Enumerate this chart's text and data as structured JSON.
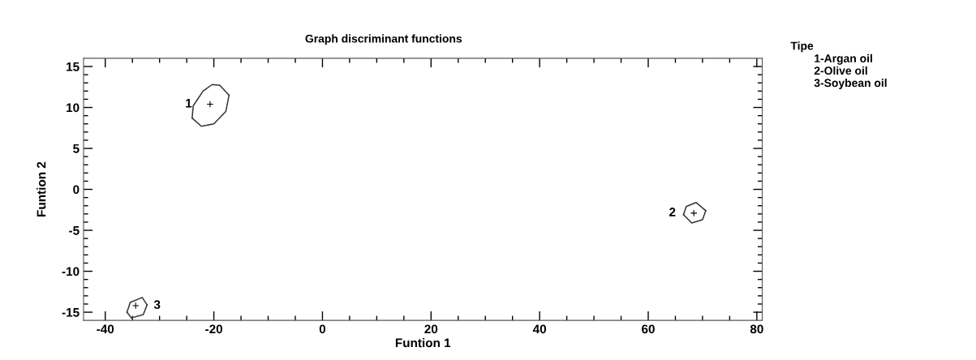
{
  "chart_data": {
    "type": "scatter",
    "title": "Graph discriminant functions",
    "xlabel": "Funtion 1",
    "ylabel": "Funtion 2",
    "legend_title": "Tipe",
    "annotations": [
      "1-Argan oil",
      "2-Olive oil",
      "3-Soybean oil"
    ],
    "marker": "cross",
    "series": [
      {
        "name": "1",
        "color": "#000000",
        "x": [
          -20.7
        ],
        "values": [
          10.4
        ]
      },
      {
        "name": "2",
        "color": "#000000",
        "x": [
          68.4
        ],
        "values": [
          -2.9
        ]
      },
      {
        "name": "3",
        "color": "#000000",
        "x": [
          -34.4
        ],
        "values": [
          -14.2
        ]
      },
      {
        "type": "line",
        "marker": "none",
        "color": "#333333",
        "x": [
          -24.0,
          -23.8,
          -22.0,
          -20.3,
          -18.9,
          -17.2
        ],
        "values": [
          8.7,
          10.2,
          12.0,
          12.8,
          12.7,
          11.5
        ]
      },
      {
        "type": "line",
        "marker": "none",
        "color": "#333333",
        "x": [
          -24.0,
          -22.3,
          -20.0,
          -17.8,
          -17.2
        ],
        "values": [
          8.7,
          7.7,
          8.0,
          9.5,
          11.5
        ]
      },
      {
        "type": "line",
        "marker": "none",
        "color": "#333333",
        "x": [
          66.5,
          67.0,
          68.8,
          70.6
        ],
        "values": [
          -3.1,
          -2.1,
          -1.6,
          -2.6
        ]
      },
      {
        "type": "line",
        "marker": "none",
        "color": "#333333",
        "x": [
          66.5,
          68.0,
          70.0,
          70.6
        ],
        "values": [
          -3.1,
          -4.1,
          -3.7,
          -2.6
        ]
      },
      {
        "type": "line",
        "marker": "none",
        "color": "#333333",
        "x": [
          -36.0,
          -35.4,
          -33.2,
          -32.3
        ],
        "values": [
          -15.0,
          -13.8,
          -13.2,
          -14.1
        ]
      },
      {
        "type": "line",
        "marker": "none",
        "color": "#333333",
        "x": [
          -36.0,
          -35.2,
          -33.0,
          -32.3
        ],
        "values": [
          -15.0,
          -15.7,
          -15.3,
          -14.1
        ]
      }
    ],
    "xlim": [
      -44,
      81
    ],
    "ylim": [
      -16,
      16
    ],
    "xticks": [
      -40,
      {
        "value": -35,
        "label": null
      },
      {
        "value": -30,
        "label": null
      },
      {
        "value": -25,
        "label": null
      },
      -20,
      {
        "value": -15,
        "label": null
      },
      {
        "value": -10,
        "label": null
      },
      {
        "value": -5,
        "label": null
      },
      0,
      {
        "value": 5,
        "label": null
      },
      {
        "value": 10,
        "label": null
      },
      {
        "value": 15,
        "label": null
      },
      20,
      {
        "value": 25,
        "label": null
      },
      {
        "value": 30,
        "label": null
      },
      {
        "value": 35,
        "label": null
      },
      40,
      {
        "value": 45,
        "label": null
      },
      {
        "value": 50,
        "label": null
      },
      {
        "value": 55,
        "label": null
      },
      60,
      {
        "value": 65,
        "label": null
      },
      {
        "value": 70,
        "label": null
      },
      {
        "value": 75,
        "label": null
      },
      80
    ],
    "yticks": [
      -15,
      {
        "value": -14,
        "label": null
      },
      {
        "value": -13,
        "label": null
      },
      {
        "value": -12,
        "label": null
      },
      {
        "value": -11,
        "label": null
      },
      -10,
      {
        "value": -9,
        "label": null
      },
      {
        "value": -8,
        "label": null
      },
      {
        "value": -7,
        "label": null
      },
      {
        "value": -6,
        "label": null
      },
      -5,
      {
        "value": -4,
        "label": null
      },
      {
        "value": -3,
        "label": null
      },
      {
        "value": -2,
        "label": null
      },
      {
        "value": -1,
        "label": null
      },
      0,
      {
        "value": 1,
        "label": null
      },
      {
        "value": 2,
        "label": null
      },
      {
        "value": 3,
        "label": null
      },
      {
        "value": 4,
        "label": null
      },
      5,
      {
        "value": 6,
        "label": null
      },
      {
        "value": 7,
        "label": null
      },
      {
        "value": 8,
        "label": null
      },
      {
        "value": 9,
        "label": null
      },
      10,
      {
        "value": 11,
        "label": null
      },
      {
        "value": 12,
        "label": null
      },
      {
        "value": 13,
        "label": null
      },
      {
        "value": 14,
        "label": null
      },
      15
    ],
    "grid": false,
    "legend": false
  }
}
